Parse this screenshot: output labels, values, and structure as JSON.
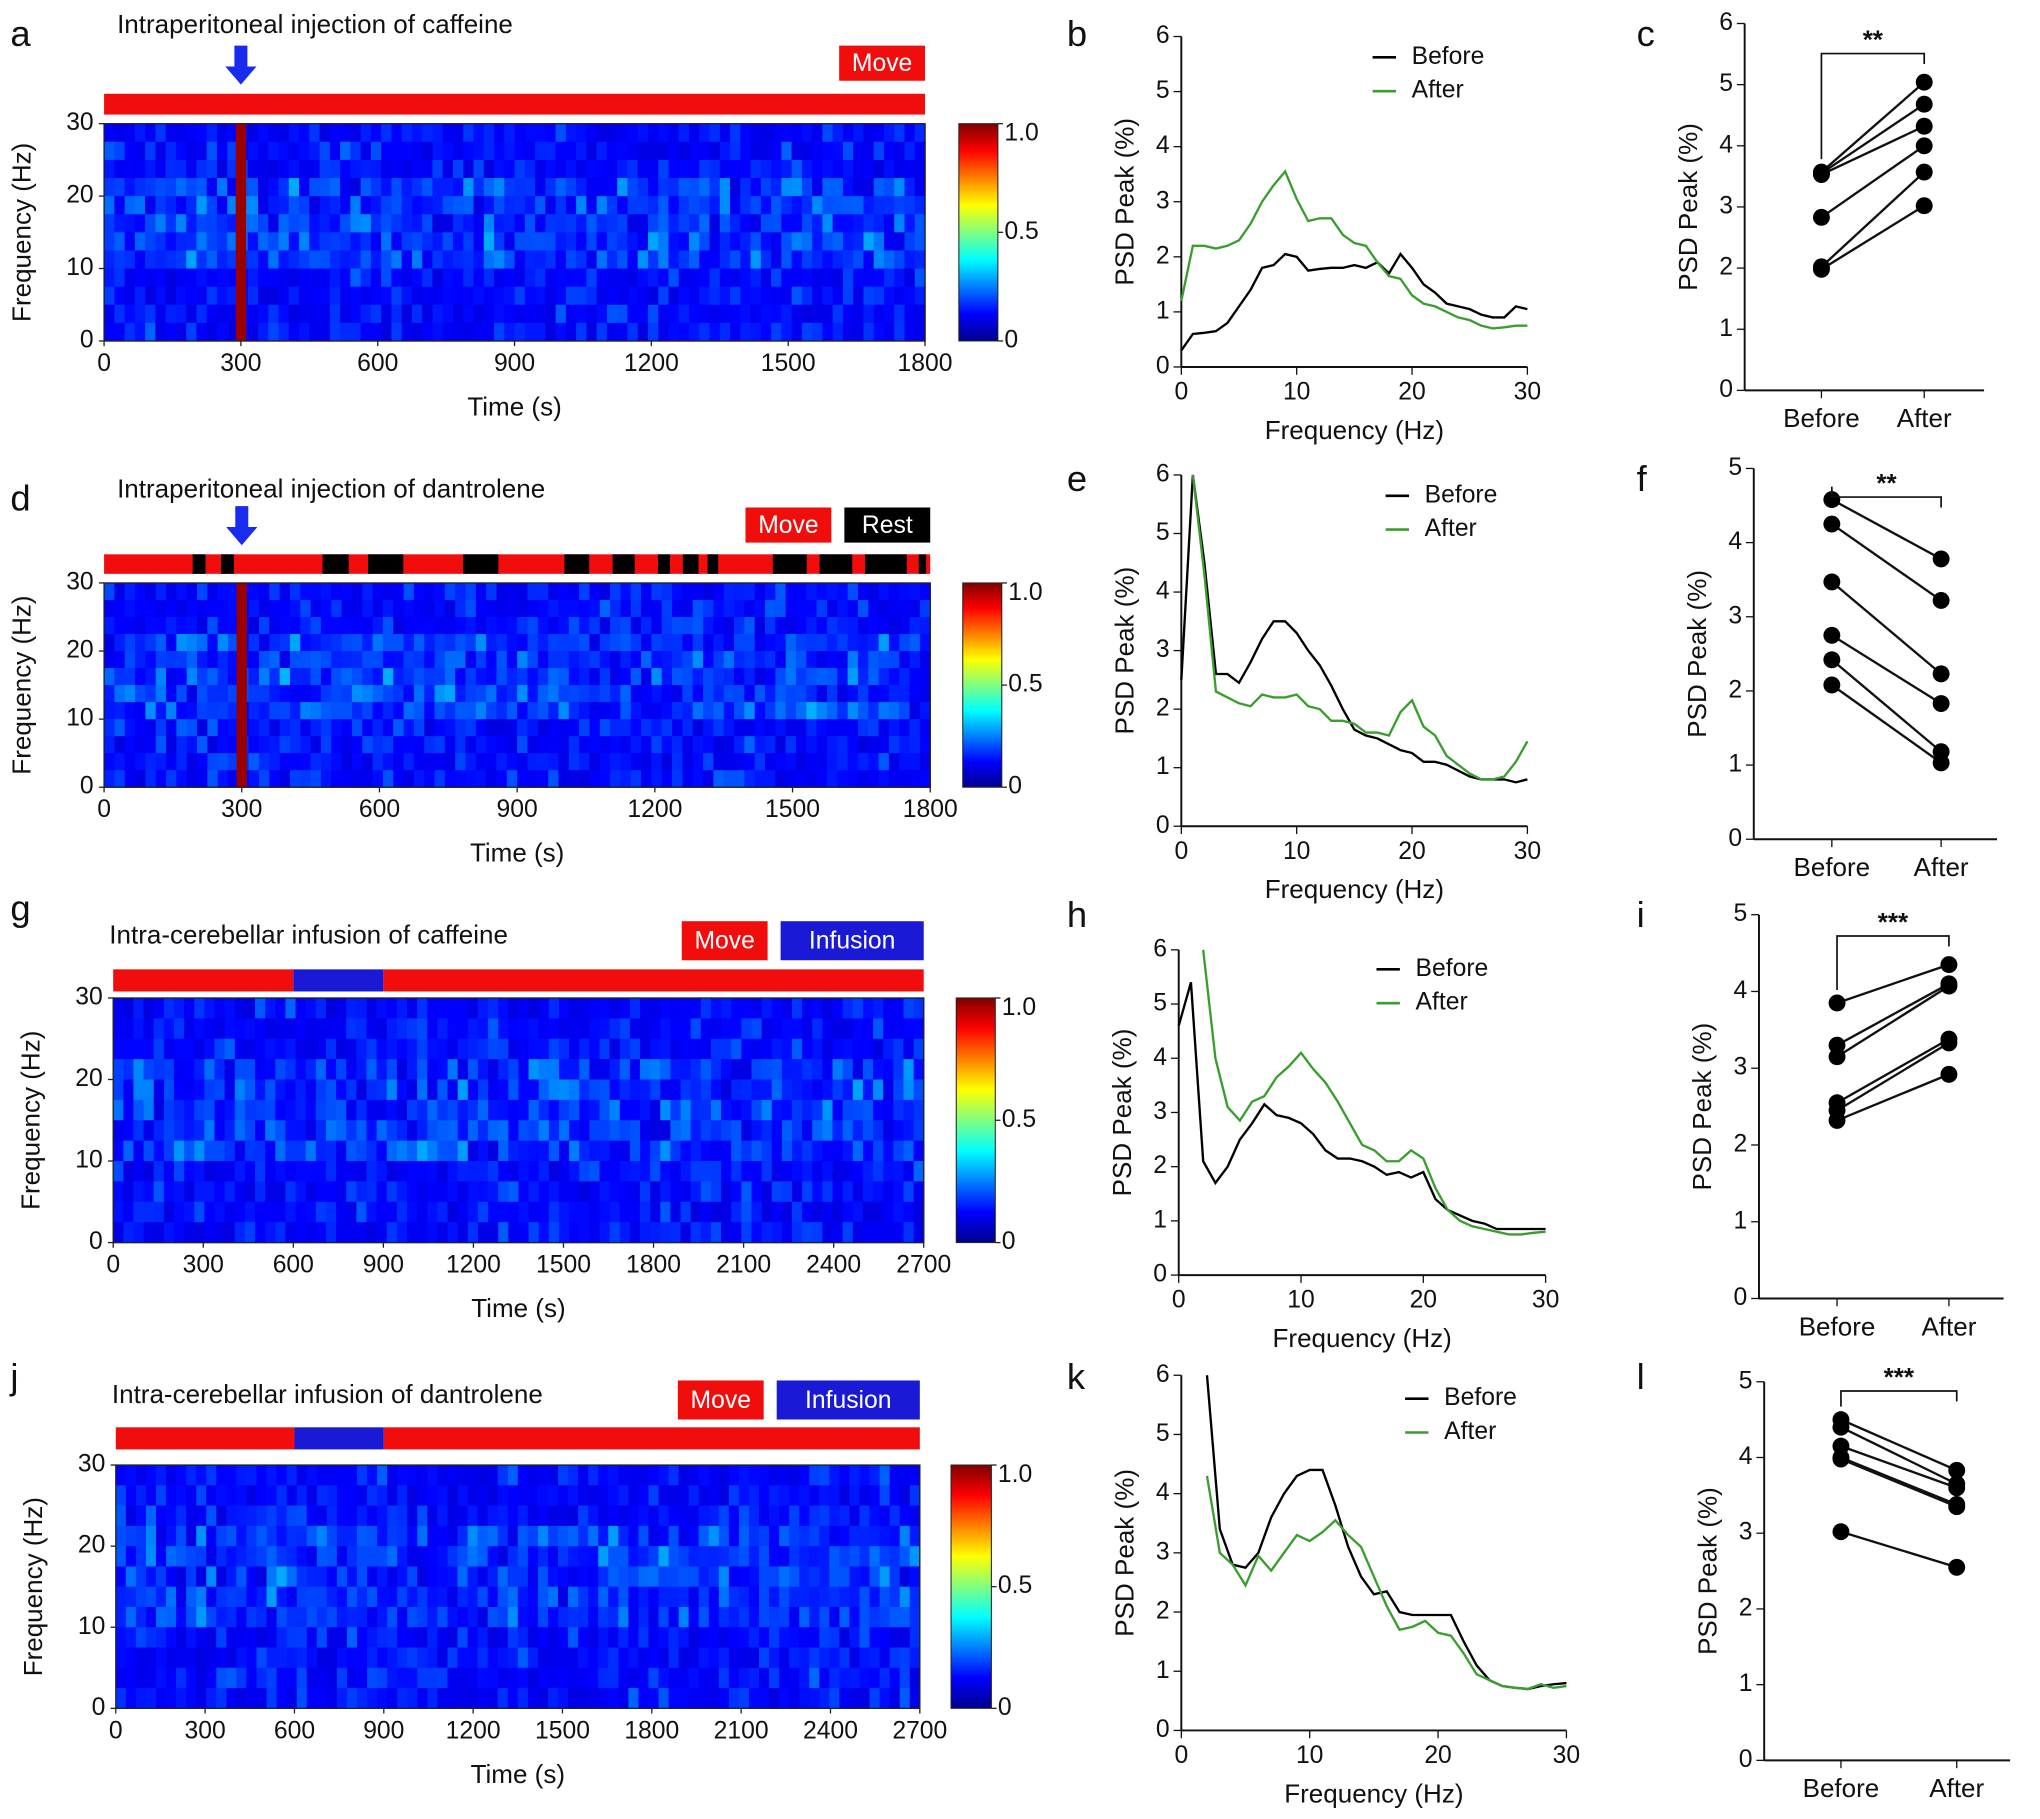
{
  "chart_data": [
    {
      "type": "heatmap",
      "panel": "a",
      "title": "Intraperitoneal injection of caffeine",
      "arrow_x": 300,
      "legend": [
        {
          "name": "Move",
          "color": "#f20d0d"
        }
      ],
      "segments": [
        [
          0,
          1800,
          0
        ]
      ],
      "xlim": [
        0,
        1800
      ],
      "xticks": [
        0,
        300,
        600,
        900,
        1200,
        1500,
        1800
      ],
      "ylim": [
        0,
        30
      ],
      "yticks": [
        0,
        10,
        20,
        30
      ],
      "xlabel": "Time (s)",
      "ylabel": "Frequency (Hz)",
      "colorbar": {
        "lim": [
          0,
          1
        ],
        "ticks": [
          0,
          0.5,
          {
            "value": 1,
            "label": "1.0"
          }
        ]
      }
    },
    {
      "type": "line",
      "panel": "b",
      "xlabel": "Frequency (Hz)",
      "ylabel": "PSD Peak (%)",
      "x": [
        0,
        1,
        2,
        3,
        4,
        5,
        6,
        7,
        8,
        9,
        10,
        11,
        12,
        13,
        14,
        15,
        16,
        17,
        18,
        19,
        20,
        21,
        22,
        23,
        24,
        25,
        26,
        27,
        28,
        29,
        30
      ],
      "series": [
        {
          "name": "Before",
          "color": "#000000",
          "values": [
            0.3,
            0.6,
            0.62,
            0.65,
            0.8,
            1.1,
            1.4,
            1.8,
            1.85,
            2.05,
            2.0,
            1.75,
            1.78,
            1.8,
            1.8,
            1.85,
            1.8,
            1.9,
            1.7,
            2.05,
            1.8,
            1.5,
            1.35,
            1.15,
            1.1,
            1.05,
            0.95,
            0.9,
            0.9,
            1.1,
            1.05
          ]
        },
        {
          "name": "After",
          "color": "#3a9e2f",
          "values": [
            1.2,
            2.2,
            2.2,
            2.15,
            2.2,
            2.3,
            2.6,
            3.0,
            3.3,
            3.55,
            3.05,
            2.65,
            2.7,
            2.7,
            2.4,
            2.25,
            2.2,
            1.9,
            1.65,
            1.6,
            1.3,
            1.15,
            1.1,
            1.0,
            0.9,
            0.85,
            0.75,
            0.7,
            0.72,
            0.75,
            0.75
          ]
        }
      ],
      "xlim": [
        0,
        30
      ],
      "xticks": [
        0,
        10,
        20,
        30
      ],
      "ylim": [
        0,
        6
      ],
      "yticks": [
        0,
        1,
        2,
        3,
        4,
        5,
        6
      ]
    },
    {
      "type": "paired",
      "panel": "c",
      "ylabel": "PSD Peak (%)",
      "categories": [
        "Before",
        "After"
      ],
      "significance": "**",
      "pairs": [
        [
          3.57,
          5.04
        ],
        [
          3.55,
          4.68
        ],
        [
          3.53,
          4.32
        ],
        [
          2.83,
          4.0
        ],
        [
          2.02,
          3.57
        ],
        [
          1.98,
          3.02
        ]
      ],
      "ylim": [
        0,
        6
      ],
      "yticks": [
        0,
        1,
        2,
        3,
        4,
        5,
        6
      ]
    },
    {
      "type": "heatmap",
      "panel": "d",
      "title": "Intraperitoneal injection of dantrolene",
      "arrow_x": 300,
      "legend": [
        {
          "name": "Move",
          "color": "#f20d0d"
        },
        {
          "name": "Rest",
          "color": "#000000"
        }
      ],
      "segments": [
        [
          0,
          1800,
          0
        ],
        [
          193,
          221,
          1
        ],
        [
          255,
          283,
          1
        ],
        [
          476,
          533,
          1
        ],
        [
          575,
          652,
          1
        ],
        [
          782,
          859,
          1
        ],
        [
          1003,
          1057,
          1
        ],
        [
          1108,
          1156,
          1
        ],
        [
          1207,
          1233,
          1
        ],
        [
          1261,
          1295,
          1
        ],
        [
          1315,
          1338,
          1
        ],
        [
          1457,
          1531,
          1
        ],
        [
          1559,
          1630,
          1
        ],
        [
          1658,
          1749,
          1
        ],
        [
          1775,
          1791,
          1
        ]
      ],
      "xlim": [
        0,
        1800
      ],
      "xticks": [
        0,
        300,
        600,
        900,
        1200,
        1500,
        1800
      ],
      "ylim": [
        0,
        30
      ],
      "yticks": [
        0,
        10,
        20,
        30
      ],
      "xlabel": "Time (s)",
      "ylabel": "Frequency (Hz)",
      "colorbar": {
        "lim": [
          0,
          1
        ],
        "ticks": [
          0,
          0.5,
          {
            "value": 1,
            "label": "1.0"
          }
        ]
      }
    },
    {
      "type": "line",
      "panel": "e",
      "xlabel": "Frequency (Hz)",
      "ylabel": "PSD Peak (%)",
      "x": [
        0,
        1,
        2,
        3,
        4,
        5,
        6,
        7,
        8,
        9,
        10,
        11,
        12,
        13,
        14,
        15,
        16,
        17,
        18,
        19,
        20,
        21,
        22,
        23,
        24,
        25,
        26,
        27,
        28,
        29,
        30
      ],
      "series": [
        {
          "name": "Before",
          "color": "#000000",
          "values": [
            2.5,
            6,
            4.5,
            2.6,
            2.6,
            2.45,
            2.8,
            3.2,
            3.5,
            3.5,
            3.3,
            3.0,
            2.75,
            2.4,
            2.0,
            1.65,
            1.55,
            1.5,
            1.4,
            1.3,
            1.25,
            1.1,
            1.1,
            1.05,
            0.95,
            0.85,
            0.8,
            0.8,
            0.8,
            0.75,
            0.8
          ]
        },
        {
          "name": "After",
          "color": "#3a9e2f",
          "values": [
            null,
            6,
            4.3,
            2.3,
            2.2,
            2.1,
            2.05,
            2.25,
            2.2,
            2.2,
            2.25,
            2.05,
            2.0,
            1.8,
            1.8,
            1.75,
            1.6,
            1.6,
            1.55,
            1.95,
            2.15,
            1.7,
            1.55,
            1.2,
            1.05,
            0.9,
            0.8,
            0.8,
            0.85,
            1.1,
            1.45
          ]
        }
      ],
      "xlim": [
        0,
        30
      ],
      "xticks": [
        0,
        10,
        20,
        30
      ],
      "ylim": [
        0,
        6
      ],
      "yticks": [
        0,
        1,
        2,
        3,
        4,
        5,
        6
      ]
    },
    {
      "type": "paired",
      "panel": "f",
      "ylabel": "PSD Peak (%)",
      "categories": [
        "Before",
        "After"
      ],
      "significance": "**",
      "pairs": [
        [
          4.58,
          3.78
        ],
        [
          4.25,
          3.22
        ],
        [
          3.47,
          2.23
        ],
        [
          2.75,
          1.83
        ],
        [
          2.42,
          1.18
        ],
        [
          2.08,
          1.03
        ]
      ],
      "ylim": [
        0,
        5
      ],
      "yticks": [
        0,
        1,
        2,
        3,
        4,
        5
      ]
    },
    {
      "type": "heatmap",
      "panel": "g",
      "title": "Intra-cerebellar infusion of caffeine",
      "legend": [
        {
          "name": "Move",
          "color": "#f20d0d"
        },
        {
          "name": "Infusion",
          "color": "#1a1ad6"
        }
      ],
      "segments": [
        [
          0,
          600,
          0
        ],
        [
          600,
          900,
          1
        ],
        [
          900,
          2700,
          0
        ]
      ],
      "xlim": [
        0,
        2700
      ],
      "xticks": [
        0,
        300,
        600,
        900,
        1200,
        1500,
        1800,
        2100,
        2400,
        2700
      ],
      "ylim": [
        0,
        30
      ],
      "yticks": [
        0,
        10,
        20,
        30
      ],
      "xlabel": "Time (s)",
      "ylabel": "Frequency (Hz)",
      "colorbar": {
        "lim": [
          0,
          1
        ],
        "ticks": [
          0,
          0.5,
          {
            "value": 1,
            "label": "1.0"
          }
        ]
      }
    },
    {
      "type": "line",
      "panel": "h",
      "xlabel": "Frequency (Hz)",
      "ylabel": "PSD Peak (%)",
      "x": [
        0,
        1,
        2,
        3,
        4,
        5,
        6,
        7,
        8,
        9,
        10,
        11,
        12,
        13,
        14,
        15,
        16,
        17,
        18,
        19,
        20,
        21,
        22,
        23,
        24,
        25,
        26,
        27,
        28,
        29,
        30
      ],
      "series": [
        {
          "name": "Before",
          "color": "#000000",
          "values": [
            4.6,
            5.4,
            2.1,
            1.7,
            2.0,
            2.5,
            2.8,
            3.15,
            2.95,
            2.9,
            2.8,
            2.6,
            2.3,
            2.15,
            2.15,
            2.1,
            2.0,
            1.85,
            1.9,
            1.8,
            1.9,
            1.4,
            1.2,
            1.1,
            1.0,
            0.95,
            0.85,
            0.85,
            0.85,
            0.85,
            0.85
          ]
        },
        {
          "name": "After",
          "color": "#3a9e2f",
          "values": [
            null,
            null,
            6,
            4.0,
            3.1,
            2.85,
            3.2,
            3.3,
            3.65,
            3.85,
            4.1,
            3.8,
            3.55,
            3.2,
            2.8,
            2.4,
            2.3,
            2.1,
            2.1,
            2.3,
            2.15,
            1.6,
            1.2,
            1.0,
            0.9,
            0.85,
            0.8,
            0.75,
            0.75,
            0.78,
            0.8
          ]
        }
      ],
      "xlim": [
        0,
        30
      ],
      "xticks": [
        0,
        10,
        20,
        30
      ],
      "ylim": [
        0,
        6
      ],
      "yticks": [
        0,
        1,
        2,
        3,
        4,
        5,
        6
      ]
    },
    {
      "type": "paired",
      "panel": "i",
      "ylabel": "PSD Peak (%)",
      "categories": [
        "Before",
        "After"
      ],
      "significance": "***",
      "pairs": [
        [
          3.85,
          4.35
        ],
        [
          3.3,
          4.1
        ],
        [
          3.15,
          4.07
        ],
        [
          2.55,
          3.38
        ],
        [
          2.45,
          3.33
        ],
        [
          2.32,
          2.92
        ]
      ],
      "ylim": [
        0,
        5
      ],
      "yticks": [
        0,
        1,
        2,
        3,
        4,
        5
      ]
    },
    {
      "type": "heatmap",
      "panel": "j",
      "title": "Intra-cerebellar infusion of dantrolene",
      "legend": [
        {
          "name": "Move",
          "color": "#f20d0d"
        },
        {
          "name": "Infusion",
          "color": "#1a1ad6"
        }
      ],
      "segments": [
        [
          0,
          600,
          0
        ],
        [
          600,
          900,
          1
        ],
        [
          900,
          2700,
          0
        ]
      ],
      "xlim": [
        0,
        2700
      ],
      "xticks": [
        0,
        300,
        600,
        900,
        1200,
        1500,
        1800,
        2100,
        2400,
        2700
      ],
      "ylim": [
        0,
        30
      ],
      "yticks": [
        0,
        10,
        20,
        30
      ],
      "xlabel": "Time (s)",
      "ylabel": "Frequency (Hz)",
      "colorbar": {
        "lim": [
          0,
          1
        ],
        "ticks": [
          0,
          0.5,
          {
            "value": 1,
            "label": "1.0"
          }
        ]
      }
    },
    {
      "type": "line",
      "panel": "k",
      "xlabel": "Frequency (Hz)",
      "ylabel": "PSD Peak (%)",
      "x": [
        0,
        1,
        2,
        3,
        4,
        5,
        6,
        7,
        8,
        9,
        10,
        11,
        12,
        13,
        14,
        15,
        16,
        17,
        18,
        19,
        20,
        21,
        22,
        23,
        24,
        25,
        26,
        27,
        28,
        29,
        30
      ],
      "series": [
        {
          "name": "Before",
          "color": "#000000",
          "values": [
            null,
            null,
            6,
            3.4,
            2.8,
            2.75,
            3.0,
            3.6,
            4.0,
            4.3,
            4.4,
            4.4,
            3.8,
            3.1,
            2.6,
            2.3,
            2.35,
            2.0,
            1.95,
            1.95,
            1.95,
            1.95,
            1.5,
            1.1,
            0.85,
            0.75,
            0.72,
            0.7,
            0.75,
            0.78,
            0.8
          ]
        },
        {
          "name": "After",
          "color": "#3a9e2f",
          "values": [
            null,
            null,
            4.3,
            3.0,
            2.8,
            2.45,
            2.95,
            2.7,
            3.0,
            3.3,
            3.2,
            3.35,
            3.55,
            3.3,
            3.1,
            2.6,
            2.1,
            1.7,
            1.75,
            1.85,
            1.65,
            1.6,
            1.3,
            0.95,
            0.85,
            0.75,
            0.72,
            0.7,
            0.78,
            0.72,
            0.75
          ]
        }
      ],
      "xlim": [
        0,
        30
      ],
      "xticks": [
        0,
        10,
        20,
        30
      ],
      "ylim": [
        0,
        6
      ],
      "yticks": [
        0,
        1,
        2,
        3,
        4,
        5,
        6
      ]
    },
    {
      "type": "paired",
      "panel": "l",
      "ylabel": "PSD Peak (%)",
      "categories": [
        "Before",
        "After"
      ],
      "significance": "***",
      "pairs": [
        [
          4.5,
          3.83
        ],
        [
          4.4,
          3.65
        ],
        [
          4.15,
          3.6
        ],
        [
          4.0,
          3.38
        ],
        [
          3.98,
          3.35
        ],
        [
          3.02,
          2.55
        ]
      ],
      "ylim": [
        0,
        5
      ],
      "yticks": [
        0,
        1,
        2,
        3,
        4,
        5
      ]
    }
  ]
}
